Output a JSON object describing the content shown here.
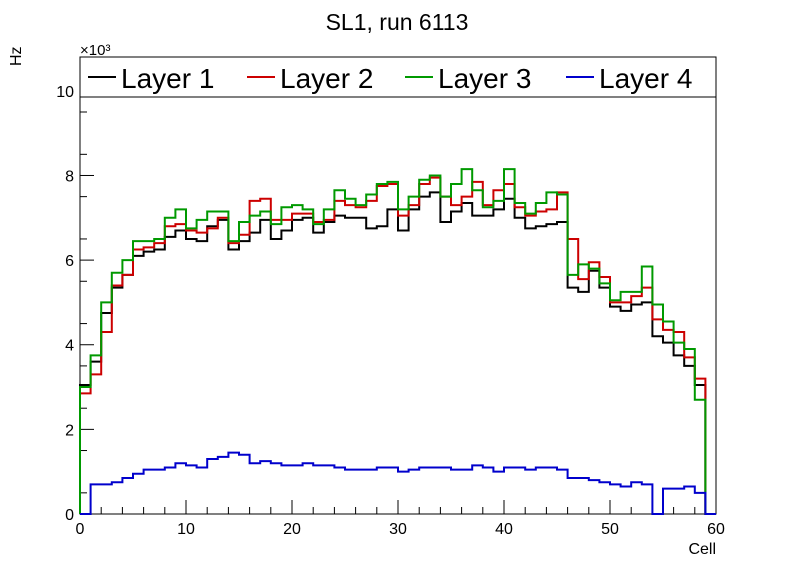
{
  "chart_data": {
    "type": "histogram-step",
    "title": "SL1, run 6113",
    "xlabel": "Cell",
    "ylabel": "Hz",
    "y_exponent_label": "×10³",
    "y_scale": 1000,
    "xlim": [
      0,
      60
    ],
    "ylim": [
      0,
      10800
    ],
    "x_ticks": [
      0,
      10,
      20,
      30,
      40,
      50,
      60
    ],
    "y_ticks": [
      0,
      2000,
      4000,
      6000,
      8000,
      10000
    ],
    "y_tick_labels": [
      "0",
      "2",
      "4",
      "6",
      "8",
      "10"
    ],
    "legend_position": "top",
    "bin_start": 0,
    "bin_width": 1,
    "series": [
      {
        "name": "Layer 1",
        "color": "#000000",
        "values": [
          3050,
          3600,
          4750,
          5350,
          5650,
          6100,
          6200,
          6250,
          6550,
          6700,
          6500,
          6450,
          6800,
          6950,
          6250,
          6450,
          6650,
          6950,
          6500,
          6700,
          6950,
          7000,
          6650,
          6900,
          7050,
          7000,
          7000,
          6750,
          6800,
          7200,
          6700,
          7200,
          7500,
          7600,
          6900,
          7150,
          7350,
          7050,
          7050,
          7200,
          7450,
          7000,
          6750,
          6800,
          6850,
          6900,
          5350,
          5250,
          5750,
          5350,
          4900,
          4800,
          4950,
          5000,
          4200,
          4050,
          3750,
          3500,
          3050,
          0
        ]
      },
      {
        "name": "Layer 2",
        "color": "#cc0000",
        "values": [
          2850,
          3300,
          4300,
          5400,
          5650,
          6250,
          6300,
          6400,
          6800,
          6850,
          6700,
          6650,
          6750,
          7000,
          6400,
          6600,
          7400,
          7450,
          6950,
          6950,
          7100,
          7100,
          6900,
          6950,
          7400,
          7300,
          7250,
          7400,
          7750,
          7800,
          7050,
          7300,
          7800,
          7950,
          7500,
          7300,
          7500,
          7850,
          7300,
          7650,
          7800,
          7250,
          7050,
          7150,
          7200,
          7600,
          6500,
          5550,
          5950,
          5600,
          5000,
          5000,
          5150,
          5350,
          4600,
          4350,
          4300,
          3700,
          3200,
          0
        ]
      },
      {
        "name": "Layer 3",
        "color": "#009900",
        "values": [
          3000,
          3750,
          5000,
          5700,
          6000,
          6450,
          6450,
          6500,
          7000,
          7200,
          6750,
          6950,
          7150,
          7150,
          6450,
          6900,
          7050,
          7150,
          6850,
          7250,
          7300,
          7200,
          6850,
          7200,
          7650,
          7450,
          7300,
          7550,
          7800,
          7850,
          7200,
          7500,
          7900,
          8000,
          7500,
          7800,
          8150,
          7650,
          7250,
          7400,
          8150,
          7350,
          7100,
          7350,
          7600,
          7550,
          5650,
          5900,
          5800,
          5450,
          5050,
          5250,
          5250,
          5850,
          4950,
          4550,
          4050,
          3900,
          2700,
          0
        ]
      },
      {
        "name": "Layer 4",
        "color": "#0000cc",
        "values": [
          0,
          700,
          700,
          750,
          850,
          950,
          1050,
          1050,
          1100,
          1200,
          1150,
          1100,
          1300,
          1350,
          1450,
          1400,
          1200,
          1250,
          1200,
          1150,
          1150,
          1200,
          1150,
          1150,
          1100,
          1050,
          1050,
          1050,
          1100,
          1100,
          1000,
          1050,
          1100,
          1100,
          1100,
          1050,
          1050,
          1150,
          1100,
          1000,
          1100,
          1100,
          1050,
          1100,
          1100,
          1050,
          850,
          850,
          800,
          750,
          700,
          650,
          750,
          700,
          0,
          600,
          600,
          650,
          500,
          0
        ]
      }
    ]
  }
}
